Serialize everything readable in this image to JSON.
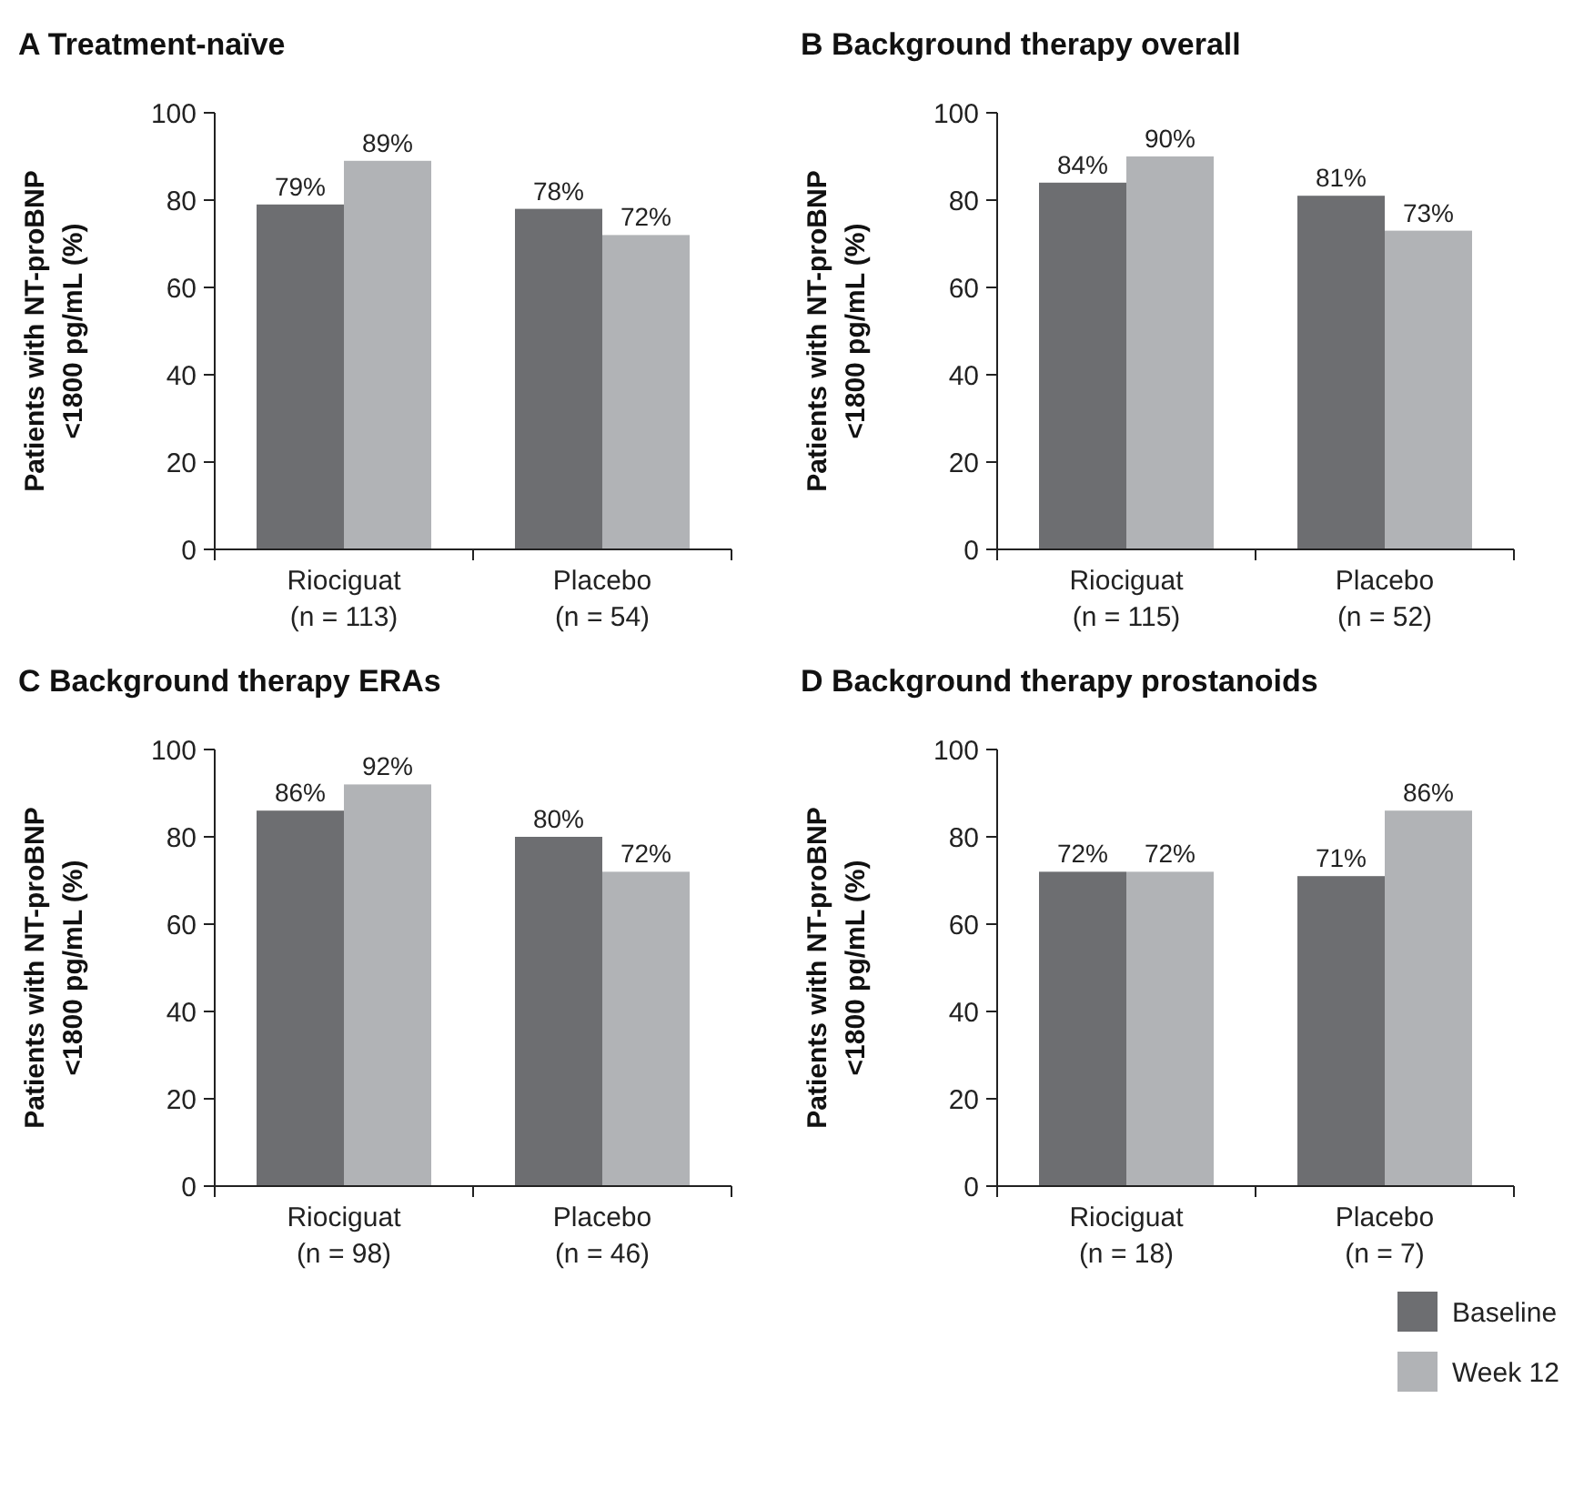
{
  "chart_data": [
    {
      "type": "bar",
      "title": "A Treatment-naïve",
      "ylabel": "Patients with NT-proBNP\n<1800 pg/mL (%)",
      "categories": [
        "Riociguat\n(n = 113)",
        "Placebo\n(n = 54)"
      ],
      "series": [
        {
          "color": "#6d6e71",
          "values": [
            79,
            78
          ],
          "value_labels": [
            "79%",
            "78%"
          ]
        },
        {
          "color": "#b1b3b6",
          "values": [
            89,
            72
          ],
          "value_labels": [
            "89%",
            "72%"
          ]
        }
      ],
      "ylim": [
        0,
        100
      ],
      "yticks": [
        0,
        20,
        40,
        60,
        80,
        100
      ]
    },
    {
      "type": "bar",
      "title": "B Background therapy overall",
      "ylabel": "Patients with NT-proBNP\n<1800 pg/mL (%)",
      "categories": [
        "Riociguat\n(n = 115)",
        "Placebo\n(n = 52)"
      ],
      "series": [
        {
          "color": "#6d6e71",
          "values": [
            84,
            81
          ],
          "value_labels": [
            "84%",
            "81%"
          ]
        },
        {
          "color": "#b1b3b6",
          "values": [
            90,
            73
          ],
          "value_labels": [
            "90%",
            "73%"
          ]
        }
      ],
      "ylim": [
        0,
        100
      ],
      "yticks": [
        0,
        20,
        40,
        60,
        80,
        100
      ]
    },
    {
      "type": "bar",
      "title": "C Background therapy ERAs",
      "ylabel": "Patients with NT-proBNP\n<1800 pg/mL (%)",
      "categories": [
        "Riociguat\n(n = 98)",
        "Placebo\n(n = 46)"
      ],
      "series": [
        {
          "color": "#6d6e71",
          "values": [
            86,
            80
          ],
          "value_labels": [
            "86%",
            "80%"
          ]
        },
        {
          "color": "#b1b3b6",
          "values": [
            92,
            72
          ],
          "value_labels": [
            "92%",
            "72%"
          ]
        }
      ],
      "ylim": [
        0,
        100
      ],
      "yticks": [
        0,
        20,
        40,
        60,
        80,
        100
      ]
    },
    {
      "type": "bar",
      "title": "D Background therapy prostanoids",
      "ylabel": "Patients with NT-proBNP\n<1800 pg/mL (%)",
      "categories": [
        "Riociguat\n(n = 18)",
        "Placebo\n(n = 7)"
      ],
      "series": [
        {
          "name": "Baseline",
          "color": "#6d6e71",
          "values": [
            72,
            71
          ],
          "value_labels": [
            "72%",
            "71%"
          ]
        },
        {
          "name": "Week 12",
          "color": "#b1b3b6",
          "values": [
            72,
            86
          ],
          "value_labels": [
            "72%",
            "86%"
          ]
        }
      ],
      "ylim": [
        0,
        100
      ],
      "yticks": [
        0,
        20,
        40,
        60,
        80,
        100
      ],
      "legend": "bottom right"
    }
  ]
}
